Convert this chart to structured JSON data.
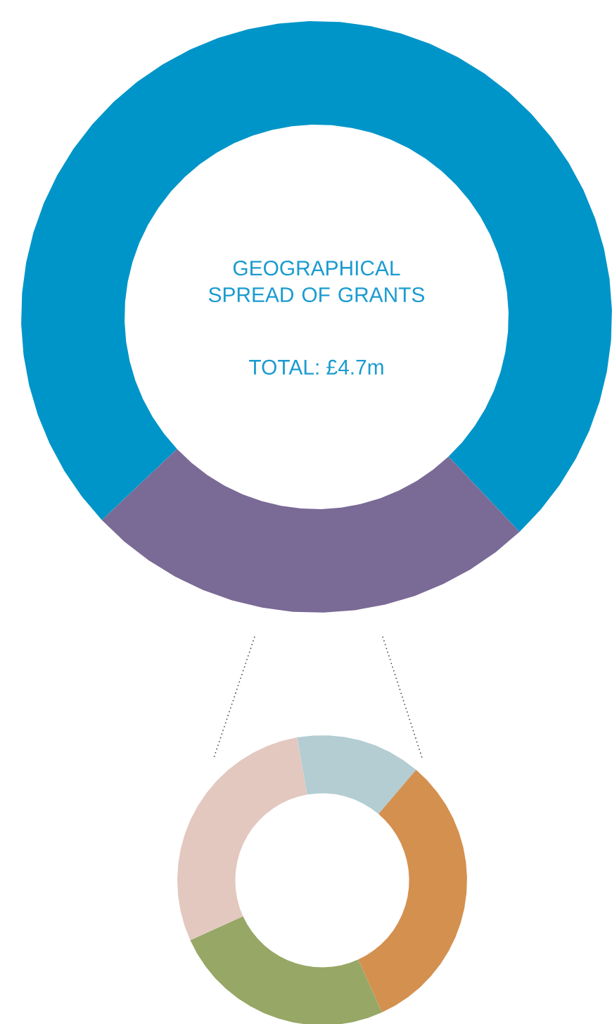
{
  "chart_data": [
    {
      "type": "donut",
      "title": "GEOGRAPHICAL SPREAD OF GRANTS",
      "subtitle": "TOTAL: £4.7m",
      "categories": [
        null,
        null
      ],
      "values": [
        75,
        25
      ],
      "colors": [
        "#0095c8",
        "#7a6a96"
      ]
    },
    {
      "type": "donut",
      "categories": [
        null,
        null,
        null,
        null
      ],
      "values": [
        14,
        32,
        25,
        29
      ],
      "colors": [
        "#b3cdd3",
        "#d4904f",
        "#97a766",
        "#e3c8c0"
      ]
    }
  ]
}
